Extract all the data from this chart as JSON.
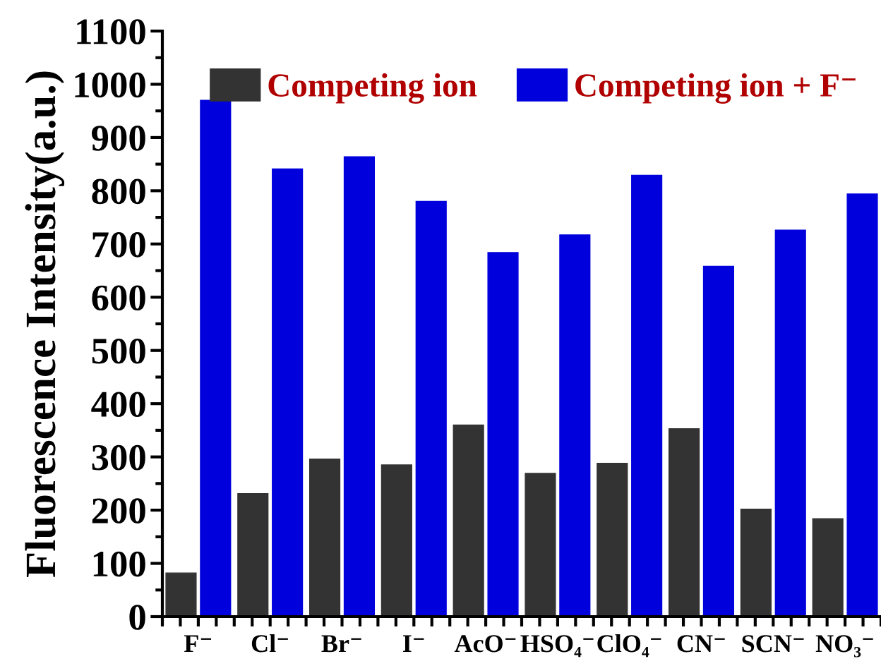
{
  "chart_data": {
    "type": "bar",
    "ylabel": "Fluorescence Intensity(a.u.)",
    "categories": [
      "F⁻",
      "Cl⁻",
      "Br⁻",
      "I⁻",
      "AcO⁻",
      "HSO₄⁻",
      "ClO₄⁻",
      "CN⁻",
      "SCN⁻",
      "NO₃⁻"
    ],
    "series": [
      {
        "name": "Competing ion",
        "color": "#333333",
        "values": [
          82,
          231,
          296,
          285,
          360,
          269,
          288,
          353,
          202,
          184
        ]
      },
      {
        "name": "Competing ion + F⁻",
        "color": "#0000dd",
        "values": [
          970,
          841,
          864,
          780,
          684,
          717,
          829,
          658,
          726,
          794
        ]
      }
    ],
    "ylim": [
      0,
      1100
    ],
    "yticks": [
      0,
      100,
      200,
      300,
      400,
      500,
      600,
      700,
      800,
      900,
      1000,
      1100
    ],
    "legend": "top right"
  }
}
